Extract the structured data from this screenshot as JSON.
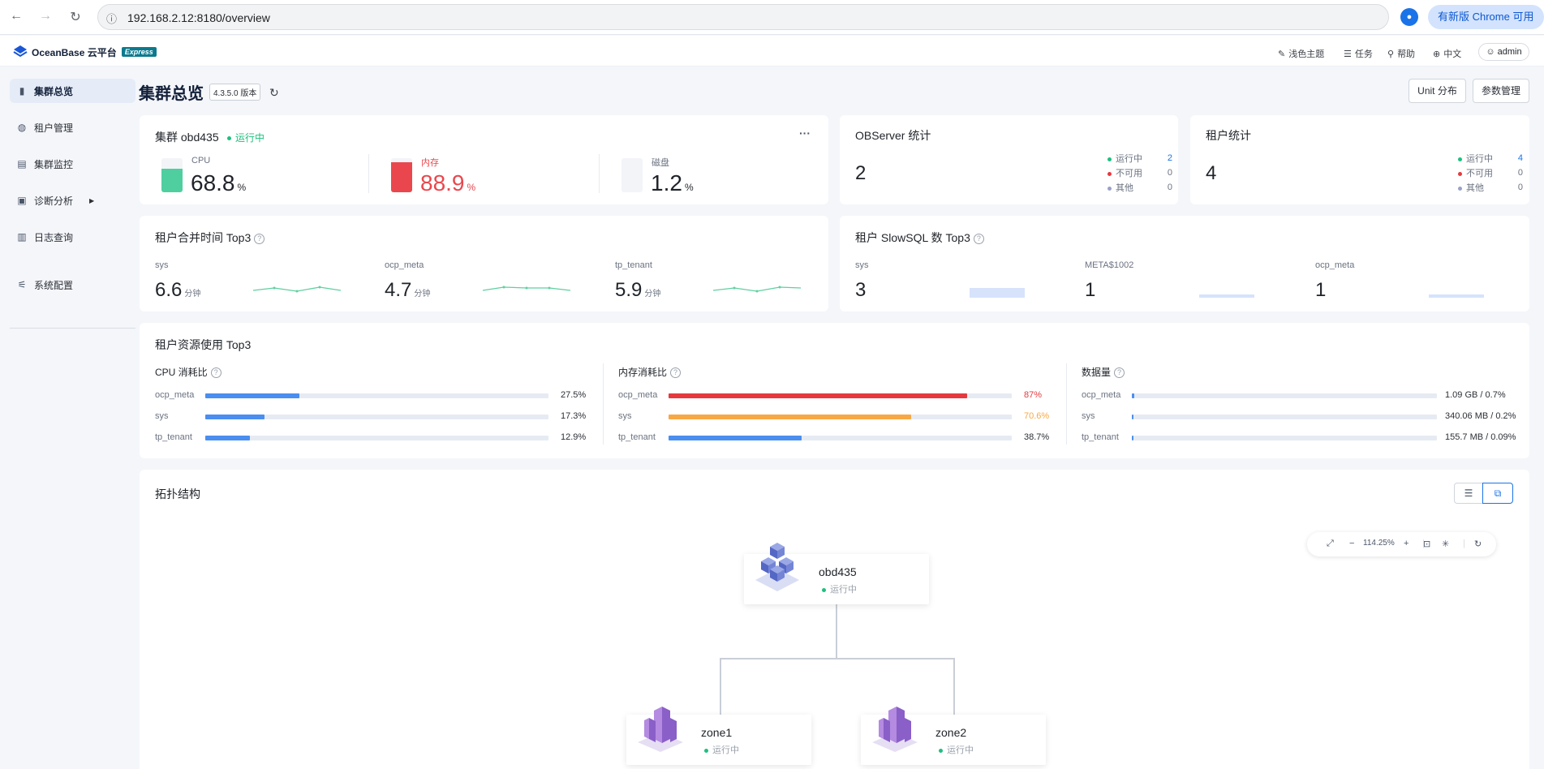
{
  "browser": {
    "url": "192.168.2.12:8180/overview",
    "update_label": "有新版 Chrome 可用"
  },
  "app": {
    "brand": "OceanBase 云平台",
    "edition": "Express",
    "topnav": {
      "theme": "浅色主题",
      "tasks": "任务",
      "help": "帮助",
      "lang": "中文",
      "user": "admin"
    }
  },
  "sidebar": {
    "items": [
      {
        "label": "集群总览"
      },
      {
        "label": "租户管理"
      },
      {
        "label": "集群监控"
      },
      {
        "label": "诊断分析"
      },
      {
        "label": "日志查询"
      },
      {
        "label": "系统配置"
      }
    ]
  },
  "page": {
    "title": "集群总览",
    "version": "4.3.5.0 版本",
    "unit_button": "Unit 分布",
    "param_button": "参数管理"
  },
  "cluster": {
    "title": "集群 obd435",
    "status": "运行中",
    "more": "···",
    "gauges": [
      {
        "label": "CPU",
        "value": "68.8",
        "unit": "%",
        "fill": 0.688,
        "color": "#4fcf9f",
        "text_color": "#1f2329"
      },
      {
        "label": "内存",
        "value": "88.9",
        "unit": "%",
        "fill": 0.889,
        "color": "#e9474d",
        "text_color": "#e9474d"
      },
      {
        "label": "磁盘",
        "value": "1.2",
        "unit": "%",
        "fill": 0.012,
        "color": "#c9d3e8",
        "text_color": "#1f2329"
      }
    ]
  },
  "observer_stats": {
    "title": "OBServer 统计",
    "total": "2",
    "legend": [
      {
        "label": "运行中",
        "value": "2"
      },
      {
        "label": "不可用",
        "value": "0"
      },
      {
        "label": "其他",
        "value": "0"
      }
    ]
  },
  "tenant_stats": {
    "title": "租户统计",
    "total": "4",
    "legend": [
      {
        "label": "运行中",
        "value": "4"
      },
      {
        "label": "不可用",
        "value": "0"
      },
      {
        "label": "其他",
        "value": "0"
      }
    ]
  },
  "merge_top3": {
    "title": "租户合并时间 Top3",
    "unit": "分钟",
    "items": [
      {
        "name": "sys",
        "value": "6.6"
      },
      {
        "name": "ocp_meta",
        "value": "4.7"
      },
      {
        "name": "tp_tenant",
        "value": "5.9"
      }
    ]
  },
  "slowsql_top3": {
    "title": "租户 SlowSQL 数 Top3",
    "items": [
      {
        "name": "sys",
        "value": "3"
      },
      {
        "name": "META$1002",
        "value": "1"
      },
      {
        "name": "ocp_meta",
        "value": "1"
      }
    ]
  },
  "resource_top3": {
    "title": "租户资源使用 Top3",
    "cpu": {
      "title": "CPU 消耗比",
      "rows": [
        {
          "name": "ocp_meta",
          "pct": "27.5%",
          "fill": 0.275
        },
        {
          "name": "sys",
          "pct": "17.3%",
          "fill": 0.173
        },
        {
          "name": "tp_tenant",
          "pct": "12.9%",
          "fill": 0.129
        }
      ]
    },
    "mem": {
      "title": "内存消耗比",
      "rows": [
        {
          "name": "ocp_meta",
          "pct": "87%",
          "fill": 0.87,
          "color": "#e5393f"
        },
        {
          "name": "sys",
          "pct": "70.6%",
          "fill": 0.706,
          "color": "#f7a845"
        },
        {
          "name": "tp_tenant",
          "pct": "38.7%",
          "fill": 0.387,
          "color": "#4a8ef0"
        }
      ]
    },
    "data": {
      "title": "数据量",
      "rows": [
        {
          "name": "ocp_meta",
          "pct": "1.09 GB / 0.7%",
          "fill": 0.007
        },
        {
          "name": "sys",
          "pct": "340.06 MB / 0.2%",
          "fill": 0.002
        },
        {
          "name": "tp_tenant",
          "pct": "155.7 MB / 0.09%",
          "fill": 0.0009
        }
      ]
    }
  },
  "topology": {
    "title": "拓扑结构",
    "zoom": "114.25%",
    "root": {
      "name": "obd435",
      "status": "运行中"
    },
    "zones": [
      {
        "name": "zone1",
        "status": "运行中"
      },
      {
        "name": "zone2",
        "status": "运行中"
      }
    ]
  }
}
